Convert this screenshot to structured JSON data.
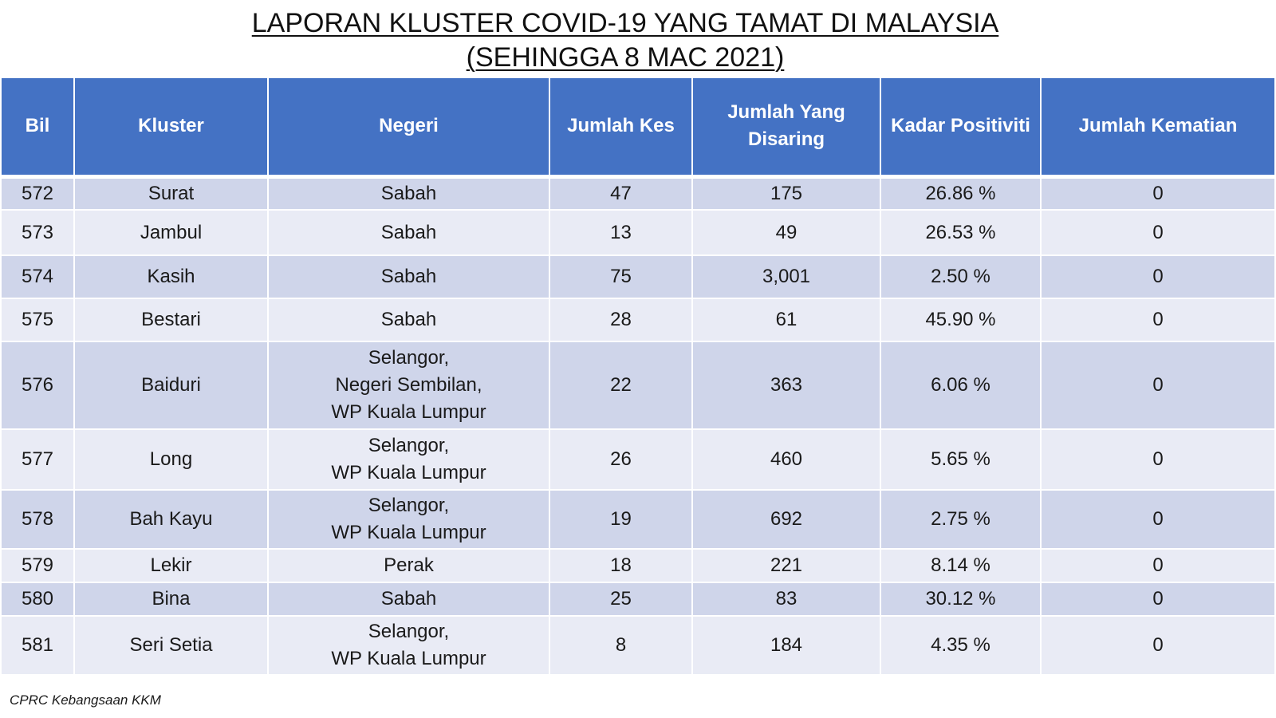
{
  "title": {
    "line1": "LAPORAN KLUSTER COVID-19 YANG TAMAT DI MALAYSIA",
    "line2": "(SEHINGGA 8 MAC 2021)"
  },
  "table": {
    "headers": {
      "bil": "Bil",
      "kluster": "Kluster",
      "negeri": "Negeri",
      "jumlah_kes": "Jumlah Kes",
      "jumlah_disaring_1": "Jumlah Yang",
      "jumlah_disaring_2": "Disaring",
      "kadar_positiviti": "Kadar Positiviti",
      "jumlah_kematian": "Jumlah Kematian"
    },
    "rows": [
      {
        "bil": "572",
        "kluster": "Surat",
        "negeri": [
          "Sabah"
        ],
        "kes": "47",
        "disaring": "175",
        "positiviti": "26.86 %",
        "kematian": "0"
      },
      {
        "bil": "573",
        "kluster": "Jambul",
        "negeri": [
          "Sabah"
        ],
        "kes": "13",
        "disaring": "49",
        "positiviti": "26.53 %",
        "kematian": "0"
      },
      {
        "bil": "574",
        "kluster": "Kasih",
        "negeri": [
          "Sabah"
        ],
        "kes": "75",
        "disaring": "3,001",
        "positiviti": "2.50 %",
        "kematian": "0"
      },
      {
        "bil": "575",
        "kluster": "Bestari",
        "negeri": [
          "Sabah"
        ],
        "kes": "28",
        "disaring": "61",
        "positiviti": "45.90 %",
        "kematian": "0"
      },
      {
        "bil": "576",
        "kluster": "Baiduri",
        "negeri": [
          "Selangor,",
          "Negeri Sembilan,",
          "WP Kuala Lumpur"
        ],
        "kes": "22",
        "disaring": "363",
        "positiviti": "6.06 %",
        "kematian": "0"
      },
      {
        "bil": "577",
        "kluster": "Long",
        "negeri": [
          "Selangor,",
          "WP Kuala Lumpur"
        ],
        "kes": "26",
        "disaring": "460",
        "positiviti": "5.65 %",
        "kematian": "0"
      },
      {
        "bil": "578",
        "kluster": "Bah Kayu",
        "negeri": [
          "Selangor,",
          "WP Kuala Lumpur"
        ],
        "kes": "19",
        "disaring": "692",
        "positiviti": "2.75 %",
        "kematian": "0"
      },
      {
        "bil": "579",
        "kluster": "Lekir",
        "negeri": [
          "Perak"
        ],
        "kes": "18",
        "disaring": "221",
        "positiviti": "8.14 %",
        "kematian": "0"
      },
      {
        "bil": "580",
        "kluster": "Bina",
        "negeri": [
          "Sabah"
        ],
        "kes": "25",
        "disaring": "83",
        "positiviti": "30.12 %",
        "kematian": "0"
      },
      {
        "bil": "581",
        "kluster": "Seri Setia",
        "negeri": [
          "Selangor,",
          "WP Kuala Lumpur"
        ],
        "kes": "8",
        "disaring": "184",
        "positiviti": "4.35 %",
        "kematian": "0"
      }
    ]
  },
  "footer": "CPRC Kebangsaan KKM",
  "colors": {
    "header_bg": "#4472c4",
    "row_dark": "#cfd5ea",
    "row_light": "#e9ebf5"
  }
}
